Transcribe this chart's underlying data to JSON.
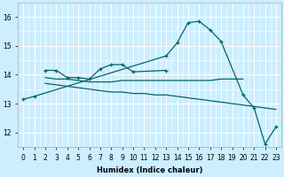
{
  "xlabel": "Humidex (Indice chaleur)",
  "bg_color": "#cceeff",
  "grid_color": "#ffffff",
  "line_color": "#006666",
  "xlim": [
    -0.5,
    23.5
  ],
  "ylim": [
    11.5,
    16.5
  ],
  "ytick_vals": [
    12,
    13,
    14,
    15,
    16
  ],
  "xtick_labels": [
    "0",
    "1",
    "2",
    "3",
    "4",
    "5",
    "6",
    "7",
    "8",
    "9",
    "10",
    "11",
    "12",
    "13",
    "14",
    "15",
    "16",
    "17",
    "18",
    "19",
    "20",
    "21",
    "22",
    "23"
  ],
  "lines": [
    {
      "x": [
        0,
        1,
        13,
        14,
        15,
        16,
        17,
        18,
        20,
        21,
        22,
        23
      ],
      "y": [
        13.15,
        13.25,
        14.65,
        15.1,
        15.8,
        15.85,
        15.55,
        15.15,
        13.3,
        12.85,
        11.6,
        12.2
      ],
      "marker": true
    },
    {
      "x": [
        2,
        3,
        4,
        5,
        6,
        7,
        8,
        9,
        10,
        13
      ],
      "y": [
        14.15,
        14.15,
        13.9,
        13.9,
        13.85,
        14.2,
        14.35,
        14.35,
        14.1,
        14.15
      ],
      "marker": true
    },
    {
      "x": [
        2,
        3,
        4,
        5,
        6,
        7,
        8,
        9,
        10,
        11,
        12,
        13,
        14,
        15,
        16,
        17,
        18,
        19,
        20
      ],
      "y": [
        13.9,
        13.85,
        13.85,
        13.8,
        13.75,
        13.75,
        13.75,
        13.8,
        13.8,
        13.8,
        13.8,
        13.8,
        13.8,
        13.8,
        13.8,
        13.8,
        13.85,
        13.85,
        13.85
      ],
      "marker": false
    },
    {
      "x": [
        2,
        3,
        4,
        5,
        6,
        7,
        8,
        9,
        10,
        11,
        12,
        13,
        14,
        15,
        16,
        17,
        18,
        19,
        20,
        21,
        22,
        23
      ],
      "y": [
        13.7,
        13.65,
        13.6,
        13.55,
        13.5,
        13.45,
        13.4,
        13.4,
        13.35,
        13.35,
        13.3,
        13.3,
        13.25,
        13.2,
        13.15,
        13.1,
        13.05,
        13.0,
        12.95,
        12.9,
        12.85,
        12.8
      ],
      "marker": false
    }
  ]
}
